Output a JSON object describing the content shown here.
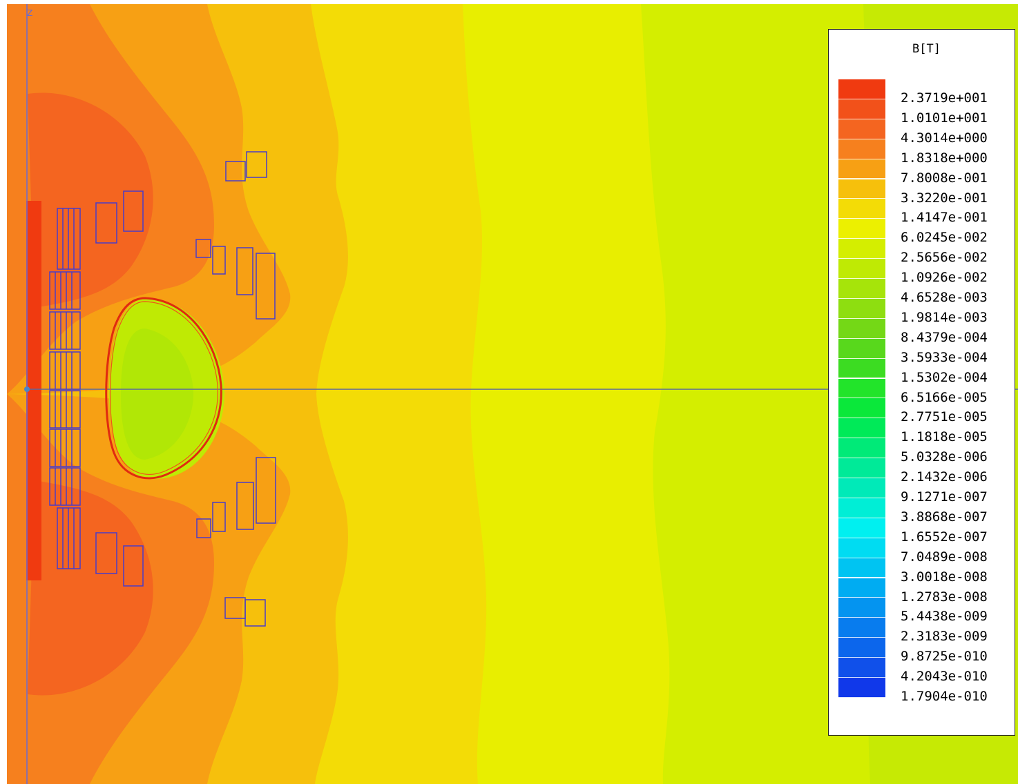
{
  "axis": {
    "z_label": "Z"
  },
  "legend": {
    "title": "B[T]",
    "entries": [
      {
        "label": "2.3719e+001",
        "color": "#f03a10"
      },
      {
        "label": "1.0101e+001",
        "color": "#f2511a"
      },
      {
        "label": "4.3014e+000",
        "color": "#f46520"
      },
      {
        "label": "1.8318e+000",
        "color": "#f6801e"
      },
      {
        "label": "7.8008e-001",
        "color": "#f7a014"
      },
      {
        "label": "3.3220e-001",
        "color": "#f6c00c"
      },
      {
        "label": "1.4147e-001",
        "color": "#f3dc06"
      },
      {
        "label": "6.0245e-002",
        "color": "#ecf000"
      },
      {
        "label": "2.5656e-002",
        "color": "#d4ee00"
      },
      {
        "label": "1.0926e-002",
        "color": "#bfea04"
      },
      {
        "label": "4.6528e-003",
        "color": "#a6e40a"
      },
      {
        "label": "1.9814e-003",
        "color": "#8ede10"
      },
      {
        "label": "8.4379e-004",
        "color": "#74d816"
      },
      {
        "label": "3.5933e-004",
        "color": "#58d81c"
      },
      {
        "label": "1.5302e-004",
        "color": "#3cdc22"
      },
      {
        "label": "6.5166e-005",
        "color": "#22e42a"
      },
      {
        "label": "2.7751e-005",
        "color": "#0ae83a"
      },
      {
        "label": "1.1818e-005",
        "color": "#00ea58"
      },
      {
        "label": "5.0328e-006",
        "color": "#00ea78"
      },
      {
        "label": "2.1432e-006",
        "color": "#00ea98"
      },
      {
        "label": "9.1271e-007",
        "color": "#00eab8"
      },
      {
        "label": "3.8868e-007",
        "color": "#00eed6"
      },
      {
        "label": "1.6552e-007",
        "color": "#00f0f0"
      },
      {
        "label": "7.0489e-008",
        "color": "#00dcf2"
      },
      {
        "label": "3.0018e-008",
        "color": "#00c4f2"
      },
      {
        "label": "1.2783e-008",
        "color": "#00acf2"
      },
      {
        "label": "5.4438e-009",
        "color": "#0494f0"
      },
      {
        "label": "2.3183e-009",
        "color": "#087cee"
      },
      {
        "label": "9.8725e-010",
        "color": "#0c66ec"
      },
      {
        "label": "4.2043e-010",
        "color": "#1050ea"
      },
      {
        "label": "1.7904e-010",
        "color": "#1038ea"
      }
    ]
  }
}
